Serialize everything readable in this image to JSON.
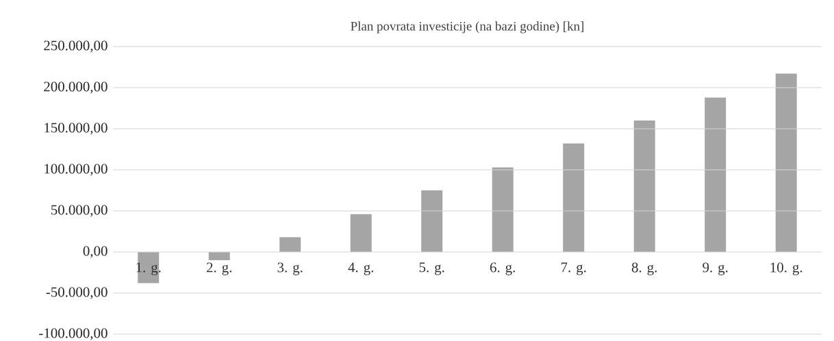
{
  "chart_data": {
    "type": "bar",
    "title": "Plan povrata investicije (na bazi godine) [kn]",
    "categories": [
      "1. g.",
      "2. g.",
      "3. g.",
      "4. g.",
      "5. g.",
      "6. g.",
      "7. g.",
      "8. g.",
      "9. g.",
      "10. g."
    ],
    "values": [
      -38000,
      -10000,
      18000,
      46000,
      75000,
      103000,
      132000,
      160000,
      188000,
      217000
    ],
    "color": "#a5a5a5",
    "ylim": [
      -100000,
      250000
    ],
    "yticks": [
      {
        "value": -100000,
        "label": "-100.000,00"
      },
      {
        "value": -50000,
        "label": "-50.000,00"
      },
      {
        "value": 0,
        "label": "0,00"
      },
      {
        "value": 50000,
        "label": "50.000,00"
      },
      {
        "value": 100000,
        "label": "100.000,00"
      },
      {
        "value": 150000,
        "label": "150.000,00"
      },
      {
        "value": 200000,
        "label": "200.000,00"
      },
      {
        "value": 250000,
        "label": "250.000,00"
      }
    ],
    "grid": "y"
  }
}
